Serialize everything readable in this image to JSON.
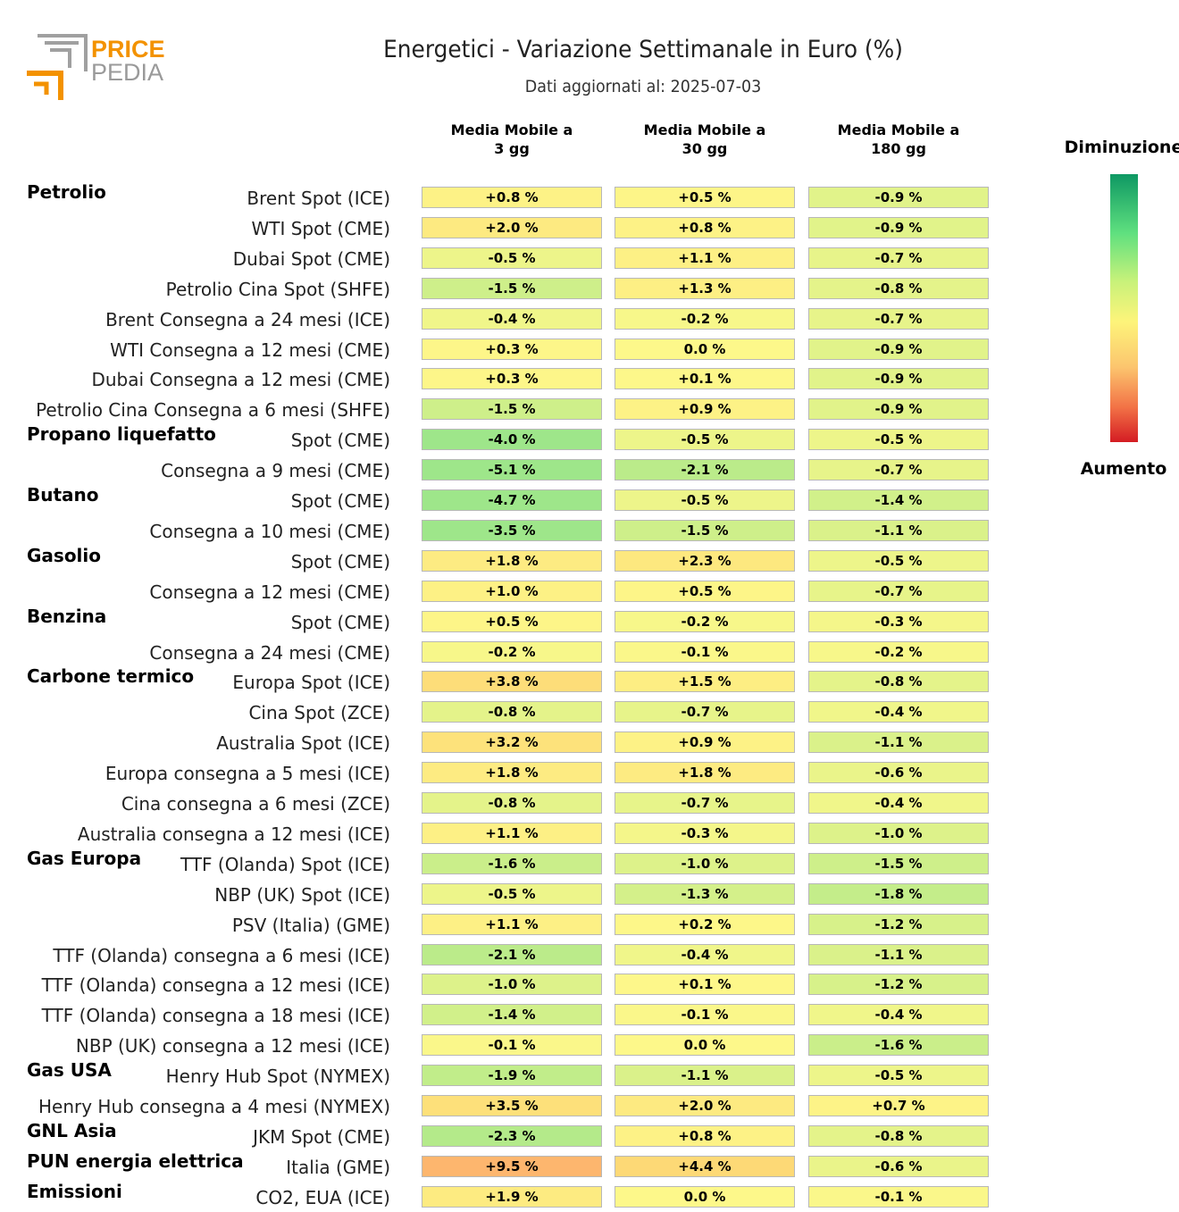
{
  "logo": {
    "line1": "PRICE",
    "line2": "PEDIA"
  },
  "chart_data": {
    "type": "table",
    "title": "Energetici - Variazione Settimanale in Euro (%)",
    "subtitle": "Dati aggiornati al: 2025-07-03",
    "columns": [
      "Media Mobile a\n3 gg",
      "Media Mobile a\n30 gg",
      "Media Mobile a\n180 gg"
    ],
    "groups": [
      {
        "name": "Petrolio",
        "rows": [
          {
            "label": "Brent Spot (ICE)",
            "values": [
              "+0.8 %",
              "+0.5 %",
              "-0.9 %"
            ],
            "nums": [
              0.8,
              0.5,
              -0.9
            ]
          },
          {
            "label": "WTI Spot (CME)",
            "values": [
              "+2.0 %",
              "+0.8 %",
              "-0.9 %"
            ],
            "nums": [
              2.0,
              0.8,
              -0.9
            ]
          },
          {
            "label": "Dubai Spot (CME)",
            "values": [
              "-0.5 %",
              "+1.1 %",
              "-0.7 %"
            ],
            "nums": [
              -0.5,
              1.1,
              -0.7
            ]
          },
          {
            "label": "Petrolio Cina Spot (SHFE)",
            "values": [
              "-1.5 %",
              "+1.3 %",
              "-0.8 %"
            ],
            "nums": [
              -1.5,
              1.3,
              -0.8
            ]
          },
          {
            "label": "Brent Consegna a 24 mesi (ICE)",
            "values": [
              "-0.4 %",
              "-0.2 %",
              "-0.7 %"
            ],
            "nums": [
              -0.4,
              -0.2,
              -0.7
            ]
          },
          {
            "label": "WTI Consegna a 12 mesi (CME)",
            "values": [
              "+0.3 %",
              "0.0 %",
              "-0.9 %"
            ],
            "nums": [
              0.3,
              0.0,
              -0.9
            ]
          },
          {
            "label": "Dubai Consegna a 12 mesi (CME)",
            "values": [
              "+0.3 %",
              "+0.1 %",
              "-0.9 %"
            ],
            "nums": [
              0.3,
              0.1,
              -0.9
            ]
          },
          {
            "label": "Petrolio Cina Consegna a 6 mesi (SHFE)",
            "values": [
              "-1.5 %",
              "+0.9 %",
              "-0.9 %"
            ],
            "nums": [
              -1.5,
              0.9,
              -0.9
            ]
          }
        ]
      },
      {
        "name": "Propano liquefatto",
        "rows": [
          {
            "label": "Spot (CME)",
            "values": [
              "-4.0 %",
              "-0.5 %",
              "-0.5 %"
            ],
            "nums": [
              -4.0,
              -0.5,
              -0.5
            ]
          },
          {
            "label": "Consegna a 9 mesi (CME)",
            "values": [
              "-5.1 %",
              "-2.1 %",
              "-0.7 %"
            ],
            "nums": [
              -5.1,
              -2.1,
              -0.7
            ]
          }
        ]
      },
      {
        "name": "Butano",
        "rows": [
          {
            "label": "Spot (CME)",
            "values": [
              "-4.7 %",
              "-0.5 %",
              "-1.4 %"
            ],
            "nums": [
              -4.7,
              -0.5,
              -1.4
            ]
          },
          {
            "label": "Consegna a 10 mesi (CME)",
            "values": [
              "-3.5 %",
              "-1.5 %",
              "-1.1 %"
            ],
            "nums": [
              -3.5,
              -1.5,
              -1.1
            ]
          }
        ]
      },
      {
        "name": "Gasolio",
        "rows": [
          {
            "label": "Spot (CME)",
            "values": [
              "+1.8 %",
              "+2.3 %",
              "-0.5 %"
            ],
            "nums": [
              1.8,
              2.3,
              -0.5
            ]
          },
          {
            "label": "Consegna a 12 mesi (CME)",
            "values": [
              "+1.0 %",
              "+0.5 %",
              "-0.7 %"
            ],
            "nums": [
              1.0,
              0.5,
              -0.7
            ]
          }
        ]
      },
      {
        "name": "Benzina",
        "rows": [
          {
            "label": "Spot (CME)",
            "values": [
              "+0.5 %",
              "-0.2 %",
              "-0.3 %"
            ],
            "nums": [
              0.5,
              -0.2,
              -0.3
            ]
          },
          {
            "label": "Consegna a 24 mesi (CME)",
            "values": [
              "-0.2 %",
              "-0.1 %",
              "-0.2 %"
            ],
            "nums": [
              -0.2,
              -0.1,
              -0.2
            ]
          }
        ]
      },
      {
        "name": "Carbone termico",
        "rows": [
          {
            "label": "Europa Spot (ICE)",
            "values": [
              "+3.8 %",
              "+1.5 %",
              "-0.8 %"
            ],
            "nums": [
              3.8,
              1.5,
              -0.8
            ]
          },
          {
            "label": "Cina Spot (ZCE)",
            "values": [
              "-0.8 %",
              "-0.7 %",
              "-0.4 %"
            ],
            "nums": [
              -0.8,
              -0.7,
              -0.4
            ]
          },
          {
            "label": "Australia Spot (ICE)",
            "values": [
              "+3.2 %",
              "+0.9 %",
              "-1.1 %"
            ],
            "nums": [
              3.2,
              0.9,
              -1.1
            ]
          },
          {
            "label": "Europa consegna a 5 mesi (ICE)",
            "values": [
              "+1.8 %",
              "+1.8 %",
              "-0.6 %"
            ],
            "nums": [
              1.8,
              1.8,
              -0.6
            ]
          },
          {
            "label": "Cina consegna a 6 mesi (ZCE)",
            "values": [
              "-0.8 %",
              "-0.7 %",
              "-0.4 %"
            ],
            "nums": [
              -0.8,
              -0.7,
              -0.4
            ]
          },
          {
            "label": "Australia consegna a 12 mesi (ICE)",
            "values": [
              "+1.1 %",
              "-0.3 %",
              "-1.0 %"
            ],
            "nums": [
              1.1,
              -0.3,
              -1.0
            ]
          }
        ]
      },
      {
        "name": "Gas Europa",
        "rows": [
          {
            "label": "TTF (Olanda) Spot (ICE)",
            "values": [
              "-1.6 %",
              "-1.0 %",
              "-1.5 %"
            ],
            "nums": [
              -1.6,
              -1.0,
              -1.5
            ]
          },
          {
            "label": "NBP (UK) Spot (ICE)",
            "values": [
              "-0.5 %",
              "-1.3 %",
              "-1.8 %"
            ],
            "nums": [
              -0.5,
              -1.3,
              -1.8
            ]
          },
          {
            "label": "PSV (Italia) (GME)",
            "values": [
              "+1.1 %",
              "+0.2 %",
              "-1.2 %"
            ],
            "nums": [
              1.1,
              0.2,
              -1.2
            ]
          },
          {
            "label": "TTF (Olanda) consegna a 6 mesi (ICE)",
            "values": [
              "-2.1 %",
              "-0.4 %",
              "-1.1 %"
            ],
            "nums": [
              -2.1,
              -0.4,
              -1.1
            ]
          },
          {
            "label": "TTF (Olanda) consegna a 12 mesi (ICE)",
            "values": [
              "-1.0 %",
              "+0.1 %",
              "-1.2 %"
            ],
            "nums": [
              -1.0,
              0.1,
              -1.2
            ]
          },
          {
            "label": "TTF (Olanda) consegna a 18 mesi (ICE)",
            "values": [
              "-1.4 %",
              "-0.1 %",
              "-0.4 %"
            ],
            "nums": [
              -1.4,
              -0.1,
              -0.4
            ]
          },
          {
            "label": "NBP (UK) consegna a 12 mesi (ICE)",
            "values": [
              "-0.1 %",
              "0.0 %",
              "-1.6 %"
            ],
            "nums": [
              -0.1,
              0.0,
              -1.6
            ]
          }
        ]
      },
      {
        "name": "Gas USA",
        "rows": [
          {
            "label": "Henry Hub Spot (NYMEX)",
            "values": [
              "-1.9 %",
              "-1.1 %",
              "-0.5 %"
            ],
            "nums": [
              -1.9,
              -1.1,
              -0.5
            ]
          },
          {
            "label": "Henry Hub consegna a 4 mesi (NYMEX)",
            "values": [
              "+3.5 %",
              "+2.0 %",
              "+0.7 %"
            ],
            "nums": [
              3.5,
              2.0,
              0.7
            ]
          }
        ]
      },
      {
        "name": "GNL Asia",
        "rows": [
          {
            "label": "JKM Spot (CME)",
            "values": [
              "-2.3 %",
              "+0.8 %",
              "-0.8 %"
            ],
            "nums": [
              -2.3,
              0.8,
              -0.8
            ]
          }
        ]
      },
      {
        "name": "PUN energia elettrica",
        "rows": [
          {
            "label": "Italia (GME)",
            "values": [
              "+9.5 %",
              "+4.4 %",
              "-0.6 %"
            ],
            "nums": [
              9.5,
              4.4,
              -0.6
            ]
          }
        ]
      },
      {
        "name": "Emissioni",
        "rows": [
          {
            "label": "CO2, EUA (ICE)",
            "values": [
              "+1.9 %",
              "0.0 %",
              "-0.1 %"
            ],
            "nums": [
              1.9,
              0.0,
              -0.1
            ]
          }
        ]
      }
    ],
    "legend": {
      "top": "Diminuzione",
      "bottom": "Aumento"
    },
    "colors": {
      "green_dark": "#0e9863",
      "green": "#9ee68a",
      "yellow": "#fdf88a",
      "orange": "#fdb36d",
      "red": "#d41c23"
    }
  }
}
